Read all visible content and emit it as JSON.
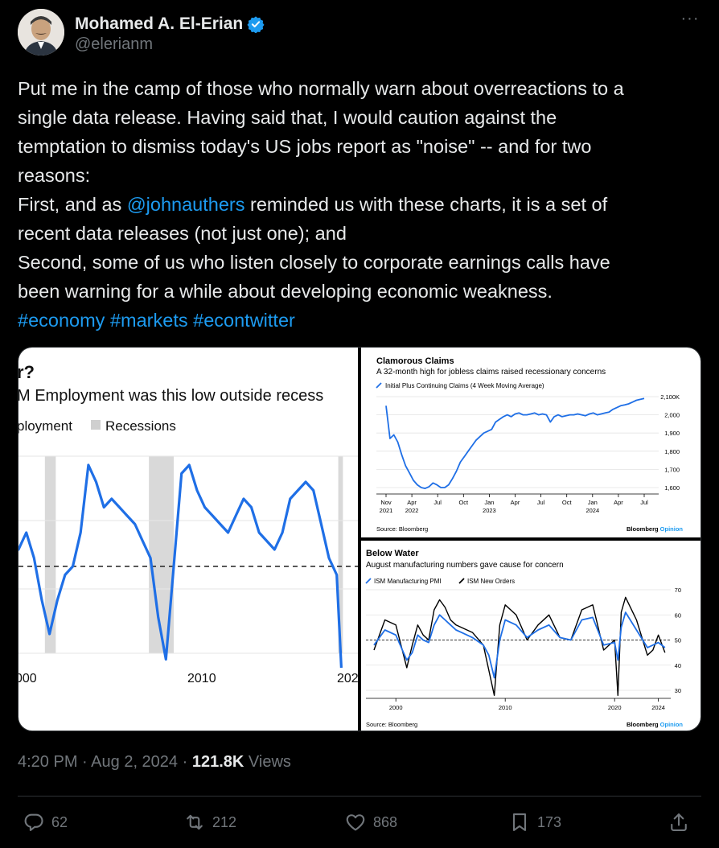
{
  "author": {
    "name": "Mohamed A. El-Erian",
    "handle": "@elerianm"
  },
  "tweet": {
    "lines": [
      {
        "text": "Put me in the camp of those who normally warn about overreactions to a"
      },
      {
        "text": "single data release. Having said that, I would caution against the"
      },
      {
        "text": "temptation to dismiss today's US jobs report as \"noise\" -- and for two"
      },
      {
        "text": "reasons:"
      },
      {
        "pre": "First, and as ",
        "mention": "@johnauthers",
        "post": " reminded us with these charts, it is a set of"
      },
      {
        "text": "recent data releases (not just one); and"
      },
      {
        "text": "Second, some of us who listen closely to corporate earnings calls have"
      },
      {
        "text": "been warning for a while about developing economic weakness."
      }
    ],
    "hashtags": [
      "#economy",
      "#markets",
      "#econtwitter"
    ]
  },
  "meta": {
    "time": "4:20 PM",
    "separator": "·",
    "date": "Aug 2, 2024",
    "views_count": "121.8K",
    "views_label": "Views"
  },
  "actions": {
    "replies": "62",
    "reposts": "212",
    "likes": "868",
    "bookmarks": "173"
  },
  "colors": {
    "blue": "#1d9bf0",
    "chart_blue": "#1f6fe6",
    "muted": "#71767b",
    "text": "#e7e9ea"
  },
  "chart_data": [
    {
      "type": "line",
      "title": "r?",
      "subtitle": "M Employment was this low outside recess",
      "legend": [
        "ployment",
        "Recessions"
      ],
      "legend_position": "top-left",
      "x_ticks": [
        "000",
        "2010",
        "202"
      ],
      "reference_line": 48,
      "recessions": [
        [
          2001.2,
          2001.9
        ],
        [
          2007.9,
          2009.5
        ],
        [
          2020.1,
          2020.4
        ]
      ],
      "x": [
        1998,
        1999,
        1999.5,
        2000,
        2000.5,
        2001,
        2001.5,
        2002,
        2002.5,
        2003,
        2003.5,
        2004,
        2004.5,
        2005,
        2005.5,
        2006,
        2006.5,
        2007,
        2007.5,
        2008,
        2008.5,
        2009,
        2009.5,
        2010,
        2010.5,
        2011,
        2011.5,
        2012,
        2012.5,
        2013,
        2013.5,
        2014,
        2014.5,
        2015,
        2015.5,
        2016,
        2016.5,
        2017,
        2017.5,
        2018,
        2018.5,
        2019,
        2019.5,
        2020,
        2020.3
      ],
      "y": [
        53,
        51,
        50,
        52,
        49,
        44,
        40,
        44,
        47,
        48,
        52,
        60,
        58,
        55,
        56,
        55,
        54,
        53,
        51,
        49,
        42,
        37,
        48,
        59,
        60,
        57,
        55,
        54,
        53,
        52,
        54,
        56,
        55,
        52,
        51,
        50,
        52,
        56,
        57,
        58,
        57,
        53,
        49,
        47,
        36
      ]
    },
    {
      "type": "line",
      "title": "Clamorous Claims",
      "subtitle": "A 32-month high for jobless claims raised recessionary concerns",
      "legend": [
        "Initial Plus Continuing Claims (4 Week Moving Average)"
      ],
      "legend_position": "top-left",
      "y_ticks": [
        "2,100K",
        "2,000",
        "1,900",
        "1,800",
        "1,700",
        "1,600"
      ],
      "ylim": [
        1550,
        2100
      ],
      "x_ticks": [
        [
          "Nov",
          "2021"
        ],
        [
          "Apr",
          "2022"
        ],
        [
          "Jul",
          ""
        ],
        [
          "Oct",
          ""
        ],
        [
          "Jan",
          "2023"
        ],
        [
          "Apr",
          ""
        ],
        [
          "Jul",
          ""
        ],
        [
          "Oct",
          ""
        ],
        [
          "Jan",
          "2024"
        ],
        [
          "Apr",
          ""
        ],
        [
          "Jul",
          ""
        ]
      ],
      "x": [
        0,
        0.5,
        1,
        1.5,
        2,
        2.5,
        3,
        3.5,
        4,
        4.5,
        5,
        5.5,
        6,
        6.5,
        7,
        7.5,
        8,
        8.5,
        9,
        9.5,
        10,
        10.5,
        11,
        11.5,
        12,
        12.5,
        13,
        13.5,
        14,
        14.5,
        15,
        15.5,
        16,
        16.5,
        17,
        17.5,
        18,
        18.5,
        19,
        19.5,
        20,
        20.5,
        21,
        21.5,
        22,
        22.5,
        23,
        23.5,
        24,
        24.5,
        25,
        25.5,
        26,
        26.5,
        27,
        27.5,
        28,
        28.5,
        29,
        29.5,
        30,
        30.5,
        31,
        31.5,
        32,
        32.5,
        33
      ],
      "y": [
        2050,
        1870,
        1890,
        1850,
        1780,
        1720,
        1680,
        1640,
        1615,
        1600,
        1595,
        1605,
        1625,
        1615,
        1600,
        1600,
        1615,
        1650,
        1690,
        1740,
        1770,
        1800,
        1830,
        1860,
        1880,
        1900,
        1910,
        1920,
        1960,
        1975,
        1990,
        2000,
        1990,
        2005,
        2010,
        2000,
        2000,
        2005,
        2010,
        2000,
        2005,
        2000,
        1960,
        1990,
        2000,
        1990,
        1995,
        2000,
        2000,
        2005,
        2000,
        1995,
        2005,
        2010,
        2000,
        2005,
        2010,
        2015,
        2030,
        2040,
        2050,
        2055,
        2060,
        2070,
        2080,
        2085,
        2090
      ]
    },
    {
      "type": "line",
      "title": "Below Water",
      "subtitle": "August manufacturing numbers gave cause for concern",
      "legend": [
        "ISM Manufacturing PMI",
        "ISM New Orders"
      ],
      "legend_position": "top-left",
      "y_ticks": [
        "70",
        "60",
        "50",
        "40",
        "30"
      ],
      "ylim": [
        27,
        72
      ],
      "x_ticks": [
        "2000",
        "2010",
        "2020",
        "2024"
      ],
      "reference_line": 50,
      "series": [
        {
          "name": "ISM Manufacturing PMI",
          "x": [
            1998,
            1999,
            2000,
            2001,
            2001.5,
            2002,
            2002.5,
            2003,
            2003.5,
            2004,
            2004.5,
            2005,
            2005.5,
            2006,
            2007,
            2008,
            2008.5,
            2009,
            2009.5,
            2010,
            2011,
            2012,
            2013,
            2014,
            2015,
            2016,
            2017,
            2018,
            2019,
            2020,
            2020.3,
            2020.6,
            2021,
            2022,
            2023,
            2023.5,
            2024,
            2024.6
          ],
          "y": [
            48,
            54,
            52,
            42,
            45,
            52,
            50,
            49,
            56,
            60,
            58,
            56,
            54,
            53,
            51,
            48,
            44,
            35,
            50,
            58,
            56,
            51,
            54,
            56,
            51,
            50,
            58,
            59,
            48,
            49,
            42,
            55,
            61,
            54,
            47,
            48,
            49,
            47
          ]
        },
        {
          "name": "ISM New Orders",
          "x": [
            1998,
            1999,
            2000,
            2001,
            2001.5,
            2002,
            2002.5,
            2003,
            2003.5,
            2004,
            2004.5,
            2005,
            2005.5,
            2006,
            2007,
            2008,
            2008.5,
            2009,
            2009.5,
            2010,
            2011,
            2012,
            2013,
            2014,
            2015,
            2016,
            2017,
            2018,
            2019,
            2020,
            2020.3,
            2020.6,
            2021,
            2022,
            2023,
            2023.5,
            2024,
            2024.6
          ],
          "y": [
            46,
            58,
            56,
            39,
            48,
            56,
            52,
            50,
            62,
            66,
            63,
            58,
            56,
            55,
            53,
            48,
            38,
            28,
            56,
            64,
            60,
            50,
            56,
            60,
            51,
            50,
            62,
            64,
            46,
            50,
            28,
            61,
            67,
            58,
            44,
            46,
            52,
            45
          ]
        }
      ]
    }
  ],
  "sources": {
    "source": "Source: Bloomberg",
    "brand_main": "Bloomberg ",
    "brand_accent": "Opinion"
  }
}
